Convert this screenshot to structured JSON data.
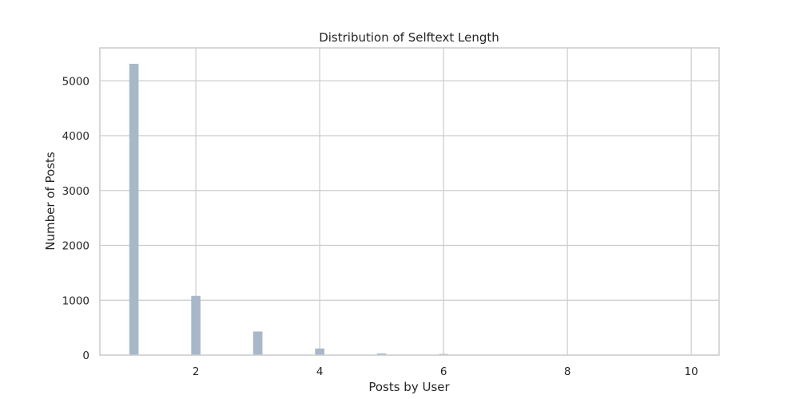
{
  "chart_data": {
    "type": "bar",
    "title": "Distribution of Selftext Length",
    "xlabel": "Posts by User",
    "ylabel": "Number of Posts",
    "xlim": [
      0.45,
      10.45
    ],
    "ylim": [
      0,
      5600
    ],
    "xticks": [
      2,
      4,
      6,
      8,
      10
    ],
    "yticks": [
      0,
      1000,
      2000,
      3000,
      4000,
      5000
    ],
    "bar_width": 0.15,
    "grid": true,
    "color": "#a7b8c8",
    "bars": [
      {
        "x": 1,
        "value": 5310
      },
      {
        "x": 2,
        "value": 1080
      },
      {
        "x": 3,
        "value": 430
      },
      {
        "x": 4,
        "value": 120
      },
      {
        "x": 5,
        "value": 30
      },
      {
        "x": 6,
        "value": 20
      },
      {
        "x": 7,
        "value": 6
      },
      {
        "x": 8,
        "value": 4
      },
      {
        "x": 9,
        "value": 3
      },
      {
        "x": 10,
        "value": 2
      }
    ]
  }
}
